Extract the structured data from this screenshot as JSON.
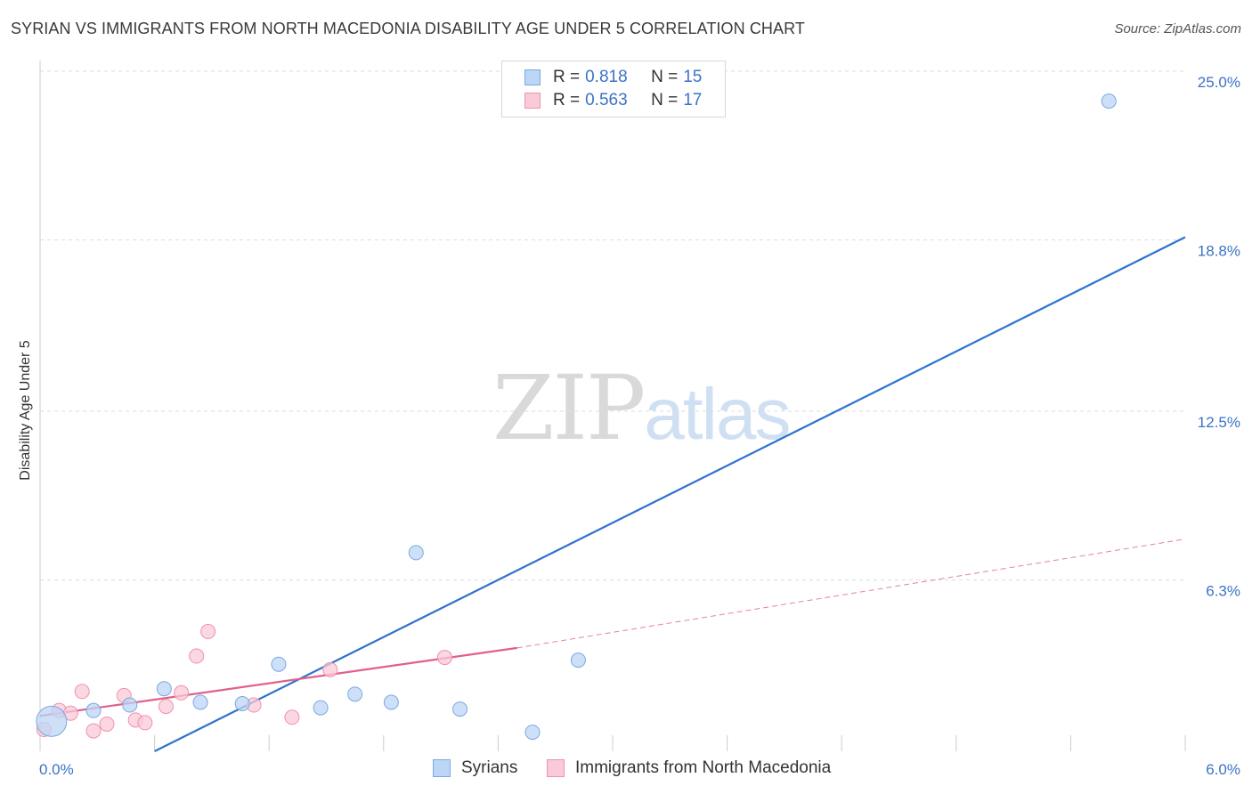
{
  "title": "SYRIAN VS IMMIGRANTS FROM NORTH MACEDONIA DISABILITY AGE UNDER 5 CORRELATION CHART",
  "source": "Source: ZipAtlas.com",
  "watermark": {
    "zip": "ZIP",
    "atlas": "atlas"
  },
  "legend": {
    "syrians": {
      "r_label": "R =",
      "r_value": "0.818",
      "n_label": "N =",
      "n_value": "15"
    },
    "macedonia": {
      "r_label": "R =",
      "r_value": "0.563",
      "n_label": "N =",
      "n_value": "17"
    }
  },
  "bottom_legend": {
    "syrians": "Syrians",
    "macedonia": "Immigrants from North Macedonia"
  },
  "colors": {
    "blue_fill": "#bcd6f5",
    "blue_stroke": "#7aa8e0",
    "blue_line": "#2f74cc",
    "pink_fill": "#f9cad7",
    "pink_stroke": "#ee92ad",
    "pink_line": "#e0608a",
    "grid": "#dddddd",
    "tick_label": "#3a73c6"
  },
  "chart_data": {
    "type": "scatter",
    "title": "SYRIAN VS IMMIGRANTS FROM NORTH MACEDONIA DISABILITY AGE UNDER 5 CORRELATION CHART",
    "xlabel": "",
    "ylabel": "Disability Age Under 5",
    "xlim": [
      0,
      6
    ],
    "ylim": [
      0,
      25.0
    ],
    "x_tick_labels": [
      "0.0%",
      "6.0%"
    ],
    "y_ticks": [
      6.3,
      12.5,
      18.8,
      25.0
    ],
    "y_tick_labels": [
      "6.3%",
      "12.5%",
      "18.8%",
      "25.0%"
    ],
    "series": [
      {
        "name": "Syrians",
        "r": 0.818,
        "n": 15,
        "points": [
          {
            "x": 0.06,
            "y": 1.1,
            "big": true
          },
          {
            "x": 0.28,
            "y": 1.5
          },
          {
            "x": 0.47,
            "y": 1.7
          },
          {
            "x": 0.65,
            "y": 2.3
          },
          {
            "x": 0.84,
            "y": 1.8
          },
          {
            "x": 1.06,
            "y": 1.75
          },
          {
            "x": 1.25,
            "y": 3.2
          },
          {
            "x": 1.47,
            "y": 1.6
          },
          {
            "x": 1.65,
            "y": 2.1
          },
          {
            "x": 1.84,
            "y": 1.8
          },
          {
            "x": 1.97,
            "y": 7.3
          },
          {
            "x": 2.2,
            "y": 1.55
          },
          {
            "x": 2.58,
            "y": 0.7
          },
          {
            "x": 2.82,
            "y": 3.35
          },
          {
            "x": 5.6,
            "y": 23.9
          }
        ],
        "trend": {
          "x": [
            0.6,
            6.0
          ],
          "y": [
            0.0,
            18.9
          ]
        }
      },
      {
        "name": "Immigrants from North Macedonia",
        "r": 0.563,
        "n": 17,
        "points": [
          {
            "x": 0.02,
            "y": 0.8
          },
          {
            "x": 0.1,
            "y": 1.5
          },
          {
            "x": 0.16,
            "y": 1.4
          },
          {
            "x": 0.22,
            "y": 2.2
          },
          {
            "x": 0.28,
            "y": 0.75
          },
          {
            "x": 0.35,
            "y": 1.0
          },
          {
            "x": 0.44,
            "y": 2.05
          },
          {
            "x": 0.5,
            "y": 1.15
          },
          {
            "x": 0.55,
            "y": 1.05
          },
          {
            "x": 0.66,
            "y": 1.65
          },
          {
            "x": 0.74,
            "y": 2.15
          },
          {
            "x": 0.82,
            "y": 3.5
          },
          {
            "x": 0.88,
            "y": 4.4
          },
          {
            "x": 1.12,
            "y": 1.7
          },
          {
            "x": 1.32,
            "y": 1.25
          },
          {
            "x": 1.52,
            "y": 3.0
          },
          {
            "x": 2.12,
            "y": 3.45
          }
        ],
        "trend": {
          "x": [
            0.0,
            2.5
          ],
          "y": [
            1.3,
            3.8
          ]
        },
        "trend_extended": {
          "x": [
            2.5,
            6.0
          ],
          "y": [
            3.8,
            7.8
          ]
        }
      }
    ]
  }
}
